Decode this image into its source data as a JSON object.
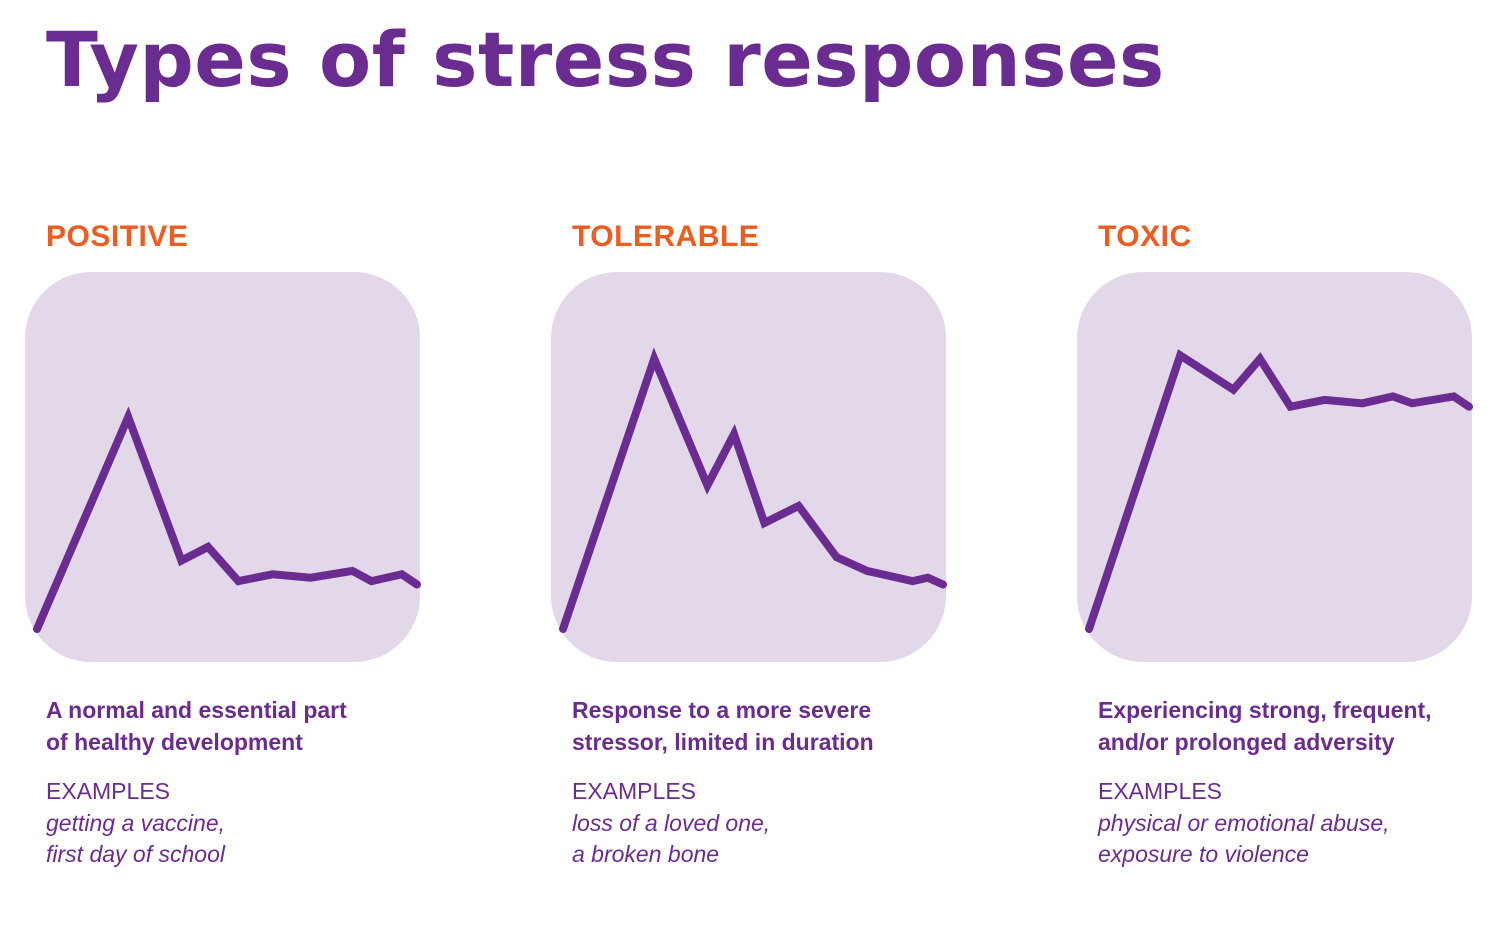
{
  "title": "Types of stress responses",
  "colors": {
    "title": "#6b2c91",
    "heading": "#ee5c1f",
    "line": "#6b2c91",
    "panel_background": "#e2d8ea"
  },
  "panels": [
    {
      "heading": "POSITIVE",
      "description": [
        "A normal and essential part",
        "of healthy development"
      ],
      "examples_label": "EXAMPLES",
      "examples": [
        "getting a vaccine,",
        "first day of school"
      ]
    },
    {
      "heading": "TOLERABLE",
      "description": [
        "Response to a more severe",
        "stressor, limited in duration"
      ],
      "examples_label": "EXAMPLES",
      "examples": [
        "loss of a loved one,",
        "a broken bone"
      ]
    },
    {
      "heading": "TOXIC",
      "description": [
        "Experiencing strong, frequent,",
        "and/or prolonged adversity"
      ],
      "examples_label": "EXAMPLES",
      "examples": [
        "physical or emotional abuse,",
        "exposure to violence"
      ]
    }
  ],
  "chart_data": [
    {
      "type": "line",
      "title": "POSITIVE",
      "xlabel": "",
      "ylabel": "",
      "xlim": [
        0,
        100
      ],
      "ylim": [
        0,
        100
      ],
      "grid": false,
      "series": [
        {
          "x": [
            0,
            24,
            38,
            45,
            53,
            62,
            72,
            83,
            88,
            96,
            100
          ],
          "y": [
            0,
            62,
            20,
            24,
            14,
            16,
            15,
            17,
            14,
            16,
            13
          ]
        }
      ]
    },
    {
      "type": "line",
      "title": "TOLERABLE",
      "xlabel": "",
      "ylabel": "",
      "xlim": [
        0,
        100
      ],
      "ylim": [
        0,
        100
      ],
      "grid": false,
      "series": [
        {
          "x": [
            0,
            24,
            38,
            45,
            53,
            62,
            72,
            80,
            92,
            96,
            100
          ],
          "y": [
            0,
            79,
            42,
            57,
            31,
            36,
            21,
            17,
            14,
            15,
            13
          ]
        }
      ]
    },
    {
      "type": "line",
      "title": "TOXIC",
      "xlabel": "",
      "ylabel": "",
      "xlim": [
        0,
        100
      ],
      "ylim": [
        0,
        100
      ],
      "grid": false,
      "series": [
        {
          "x": [
            0,
            24,
            38,
            45,
            53,
            62,
            72,
            80,
            85,
            96,
            100
          ],
          "y": [
            0,
            80,
            70,
            79,
            65,
            67,
            66,
            68,
            66,
            68,
            65
          ]
        }
      ]
    }
  ]
}
